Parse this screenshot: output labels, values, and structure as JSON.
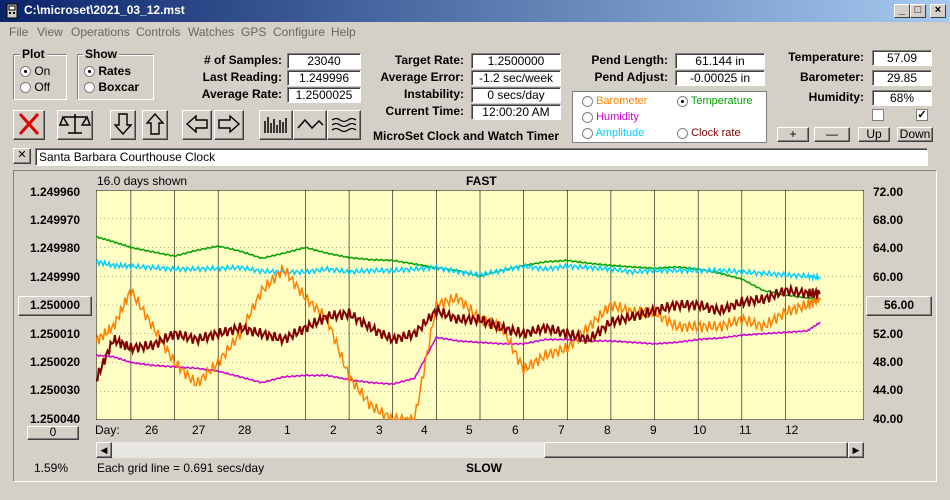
{
  "window": {
    "title": "C:\\microset\\2021_03_12.mst"
  },
  "menu": [
    "File",
    "View",
    "Operations",
    "Controls",
    "Watches",
    "GPS",
    "Configure",
    "Help"
  ],
  "plot_group": {
    "label": "Plot",
    "options": [
      "On",
      "Off"
    ],
    "selected": "On"
  },
  "show_group": {
    "label": "Show",
    "options": [
      "Rates",
      "Boxcar"
    ],
    "selected": "Rates"
  },
  "stats": [
    {
      "label": "# of Samples:",
      "value": "23040"
    },
    {
      "label": "Last Reading:",
      "value": "1.249996"
    },
    {
      "label": "Average Rate:",
      "value": "1.2500025"
    }
  ],
  "rates": [
    {
      "label": "Target Rate:",
      "value": "1.2500000"
    },
    {
      "label": "Average Error:",
      "value": "-1.2 sec/week"
    },
    {
      "label": "Instability:",
      "value": "0 secs/day"
    },
    {
      "label": "Current Time:",
      "value": "12:00:20 AM"
    }
  ],
  "app_caption": "MicroSet Clock and Watch Timer",
  "pend": [
    {
      "label": "Pend Length:",
      "value": "61.144 in"
    },
    {
      "label": "Pend Adjust:",
      "value": "-0.00025 in"
    }
  ],
  "series_selector": [
    {
      "label": "Barometer",
      "color": "#ff8000",
      "selected": false
    },
    {
      "label": "Temperature",
      "color": "#00a000",
      "selected": true
    },
    {
      "label": "Humidity",
      "color": "#d000d0",
      "selected": false
    },
    {
      "label": "Clock rate",
      "color": "#800000",
      "selected": false
    },
    {
      "label": "Amplitude",
      "color": "#00d0ff",
      "selected": false
    }
  ],
  "env": [
    {
      "label": "Temperature:",
      "value": "57.09"
    },
    {
      "label": "Barometer:",
      "value": "29.85"
    },
    {
      "label": "Humidity:",
      "value": "68%"
    }
  ],
  "env_checks": [
    false,
    true
  ],
  "adjust_buttons": [
    "+",
    "—",
    "Up",
    "Down"
  ],
  "clock_name": "Santa Barbara Courthouse Clock",
  "close_x": "✕",
  "graph": {
    "days_shown": "16.0 days shown",
    "top_label": "FAST",
    "bottom_label": "SLOW",
    "grid_note": "Each grid line = 0.691 secs/day",
    "left_button": "1.250000",
    "right_button": "56.00",
    "zero_button": "0",
    "percent": "1.59%",
    "day_prefix": "Day:"
  },
  "chart_data": {
    "type": "line",
    "x_label": "Day",
    "x_ticks": [
      "26",
      "27",
      "28",
      "1",
      "2",
      "3",
      "4",
      "5",
      "6",
      "7",
      "8",
      "9",
      "10",
      "11",
      "12"
    ],
    "y_left_ticks": [
      "1.249960",
      "1.249970",
      "1.249980",
      "1.249990",
      "1.250000",
      "1.250010",
      "1.250020",
      "1.250030",
      "1.250040"
    ],
    "y_right_ticks": [
      "72.00",
      "68.00",
      "64.00",
      "60.00",
      "56.00",
      "52.00",
      "48.00",
      "44.00",
      "40.00"
    ],
    "y_left_range": [
      1.24996,
      1.25004
    ],
    "y_right_range": [
      40,
      72
    ],
    "x_range": [
      25.2,
      13.8
    ],
    "series": [
      {
        "name": "Temperature",
        "color": "#00a000",
        "axis": "right",
        "x": [
          25.2,
          25.6,
          26,
          26.5,
          27,
          27.5,
          28,
          28.5,
          29,
          29.5,
          1,
          1.5,
          2,
          2.5,
          3,
          3.5,
          4,
          4.5,
          5,
          5.5,
          6,
          6.5,
          7,
          7.5,
          8,
          8.5,
          9,
          9.5,
          10,
          10.5,
          11,
          11.5,
          12,
          12.5,
          12.8
        ],
        "y": [
          65.5,
          64.8,
          64,
          63.4,
          62.8,
          63.6,
          64.2,
          63.5,
          62.5,
          63.2,
          64,
          63.2,
          62.6,
          62.3,
          62.2,
          61.7,
          61.2,
          60.8,
          60,
          60.8,
          61.5,
          62,
          62.2,
          61.8,
          61.5,
          61.3,
          61.1,
          61.3,
          61,
          60.4,
          59.6,
          58,
          57.4,
          57,
          56.8
        ]
      },
      {
        "name": "Amplitude",
        "color": "#00d0ff",
        "axis": "right",
        "x": [
          25.2,
          25.6,
          26,
          26.5,
          27,
          27.5,
          28,
          28.5,
          29,
          29.5,
          1,
          1.5,
          2,
          2.5,
          3,
          3.5,
          4,
          4.5,
          5,
          5.5,
          6,
          6.5,
          7,
          7.5,
          8,
          8.5,
          9,
          9.5,
          10,
          10.5,
          11,
          11.5,
          12,
          12.5,
          12.8
        ],
        "y": [
          62,
          61.5,
          61.4,
          61.2,
          61,
          61,
          61.1,
          61.2,
          60.7,
          60.6,
          60.6,
          61,
          60.6,
          60.8,
          60.8,
          61,
          61.2,
          60.6,
          60.2,
          60.8,
          61.4,
          61,
          61.4,
          61.2,
          61,
          60.6,
          60.8,
          60.8,
          60.8,
          60.8,
          60.6,
          60.4,
          60.2,
          60,
          59.8
        ]
      },
      {
        "name": "Humidity",
        "color": "#d000d0",
        "axis": "right",
        "x": [
          25.2,
          25.6,
          26,
          26.5,
          27,
          27.5,
          28,
          28.5,
          29,
          29.5,
          1,
          1.5,
          2,
          2.5,
          3,
          3.5,
          4,
          4.5,
          5,
          5.5,
          6,
          6.5,
          7,
          7.5,
          8,
          8.5,
          9,
          9.5,
          10,
          10.5,
          11,
          11.5,
          12,
          12.5,
          12.8
        ],
        "y": [
          49,
          48.8,
          48,
          47.6,
          47.4,
          47.2,
          46.8,
          46,
          45.2,
          46,
          46.2,
          46.2,
          45.6,
          45.2,
          45,
          45.8,
          51.5,
          51,
          50.8,
          50.6,
          50.6,
          51.2,
          51.2,
          51,
          51,
          50.8,
          50.6,
          50.8,
          51.2,
          51.4,
          51.8,
          52,
          52.2,
          52.4,
          53.6
        ]
      },
      {
        "name": "Barometer",
        "color": "#ff8000",
        "axis": "right",
        "x": [
          25.2,
          25.6,
          26,
          26.5,
          27,
          27.5,
          28,
          28.5,
          29,
          29.5,
          1,
          1.5,
          2,
          2.5,
          3,
          3.5,
          4,
          4.5,
          5,
          5.5,
          6,
          6.5,
          7,
          7.5,
          8,
          8.5,
          9,
          9.5,
          10,
          10.5,
          11,
          11.5,
          12,
          12.5,
          12.8
        ],
        "y": [
          51,
          53,
          58,
          53,
          48,
          45,
          48,
          52,
          58,
          61,
          57,
          54,
          46,
          42,
          40,
          40,
          56,
          57,
          54,
          53,
          47,
          49,
          50,
          53,
          56,
          55,
          55,
          53,
          53,
          53,
          54,
          53,
          55,
          56,
          57
        ]
      },
      {
        "name": "Clock rate",
        "color": "#800000",
        "axis": "left",
        "x": [
          25.2,
          25.6,
          26,
          26.5,
          27,
          27.5,
          28,
          28.5,
          29,
          29.5,
          1,
          1.5,
          2,
          2.5,
          3,
          3.5,
          4,
          4.5,
          5,
          5.5,
          6,
          6.5,
          7,
          7.5,
          8,
          8.5,
          9,
          9.5,
          10,
          10.5,
          11,
          11.5,
          12,
          12.5,
          12.8
        ],
        "y": [
          1.250026,
          1.250012,
          1.250015,
          1.250014,
          1.25001,
          1.250012,
          1.25001,
          1.250008,
          1.25001,
          1.250012,
          1.250008,
          1.250004,
          1.250003,
          1.250008,
          1.250012,
          1.25001,
          1.250002,
          1.250005,
          1.250005,
          1.250008,
          1.25001,
          1.250008,
          1.25001,
          1.250012,
          1.250006,
          1.250004,
          1.250002,
          1.25,
          1.25,
          1.250002,
          1.249999,
          1.249998,
          1.249995,
          1.249996,
          1.249996
        ]
      }
    ]
  }
}
